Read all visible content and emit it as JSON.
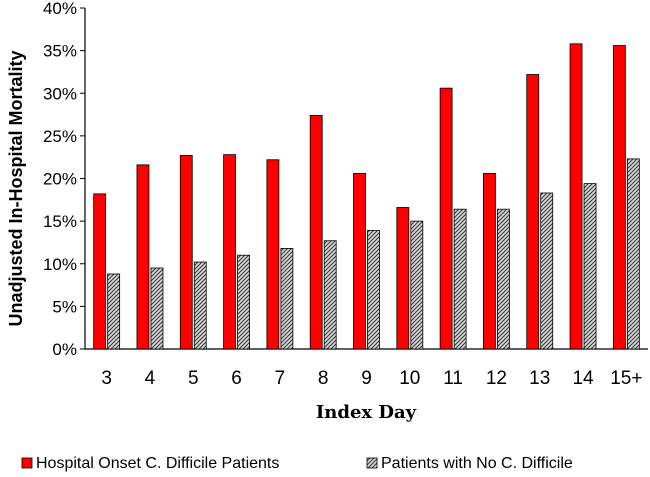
{
  "chart_data": {
    "type": "bar",
    "categories": [
      "3",
      "4",
      "5",
      "6",
      "7",
      "8",
      "9",
      "10",
      "11",
      "12",
      "13",
      "14",
      "15+"
    ],
    "series": [
      {
        "name": "Hospital Onset C. Difficile Patients",
        "values": [
          18.2,
          21.6,
          22.7,
          22.8,
          22.2,
          27.4,
          20.6,
          16.6,
          30.6,
          20.6,
          32.2,
          35.8,
          35.6
        ],
        "color": "#ff0000"
      },
      {
        "name": "Patients with No C. Difficile",
        "values": [
          8.8,
          9.5,
          10.2,
          11.0,
          11.8,
          12.7,
          13.9,
          15.0,
          16.4,
          16.4,
          18.3,
          19.4,
          22.3
        ],
        "color": "#9a9a9a"
      }
    ],
    "ylim": [
      0,
      40
    ],
    "yticks": [
      "0%",
      "5%",
      "10%",
      "15%",
      "20%",
      "25%",
      "30%",
      "35%",
      "40%"
    ],
    "xlabel": "Index Day",
    "ylabel": "Unadjusted In-Hospital Mortality",
    "legend_position": "bottom",
    "grid": false
  }
}
